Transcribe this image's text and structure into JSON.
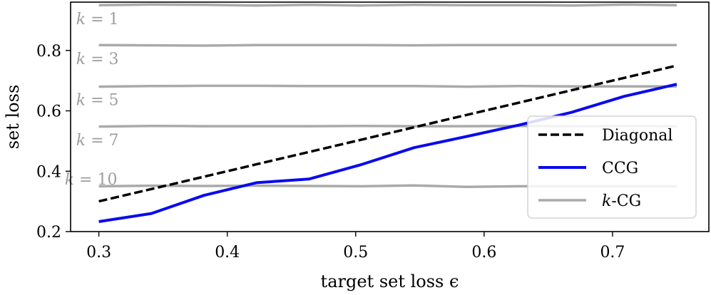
{
  "chart_data": {
    "type": "line",
    "title": "",
    "xlabel": "target set loss ϵ",
    "ylabel": "set loss",
    "xlim": [
      0.278,
      0.775
    ],
    "ylim": [
      0.2,
      0.96
    ],
    "xticks": [
      0.3,
      0.4,
      0.5,
      0.6,
      0.7
    ],
    "xtick_labels": [
      "0.3",
      "0.4",
      "0.5",
      "0.6",
      "0.7"
    ],
    "yticks": [
      0.2,
      0.4,
      0.6,
      0.8
    ],
    "ytick_labels": [
      "0.2",
      "0.4",
      "0.6",
      "0.8"
    ],
    "grid": false,
    "legend_position": "lower-right",
    "x": [
      0.3,
      0.3409,
      0.3818,
      0.4227,
      0.4636,
      0.5045,
      0.5455,
      0.5864,
      0.6273,
      0.6682,
      0.7091,
      0.75
    ],
    "series": [
      {
        "name": "Diagonal",
        "color": "#000000",
        "style": "dashed",
        "values": [
          0.3,
          0.3409,
          0.3818,
          0.4227,
          0.4636,
          0.5045,
          0.5455,
          0.5864,
          0.6273,
          0.6682,
          0.7091,
          0.75
        ]
      },
      {
        "name": "CCG",
        "color": "#0a0aef",
        "style": "solid",
        "values": [
          0.233,
          0.26,
          0.32,
          0.362,
          0.374,
          0.422,
          0.478,
          0.515,
          0.553,
          0.595,
          0.648,
          0.688
        ]
      },
      {
        "name": "k-CG",
        "color": "#aaaaaa",
        "style": "solid",
        "values": [
          0.95,
          0.952,
          0.951,
          0.949,
          0.951,
          0.949,
          0.951,
          0.95,
          0.95,
          0.949,
          0.952,
          0.95
        ]
      },
      {
        "name": "",
        "color": "#aaaaaa",
        "style": "solid",
        "values": [
          0.818,
          0.817,
          0.816,
          0.818,
          0.818,
          0.818,
          0.817,
          0.818,
          0.818,
          0.818,
          0.818,
          0.818
        ]
      },
      {
        "name": "",
        "color": "#aaaaaa",
        "style": "solid",
        "values": [
          0.68,
          0.682,
          0.683,
          0.683,
          0.682,
          0.682,
          0.682,
          0.68,
          0.682,
          0.681,
          0.681,
          0.681
        ]
      },
      {
        "name": "",
        "color": "#aaaaaa",
        "style": "solid",
        "values": [
          0.548,
          0.55,
          0.549,
          0.549,
          0.549,
          0.55,
          0.549,
          0.549,
          0.55,
          0.549,
          0.55,
          0.549
        ]
      },
      {
        "name": "",
        "color": "#aaaaaa",
        "style": "solid",
        "values": [
          0.35,
          0.352,
          0.351,
          0.352,
          0.351,
          0.35,
          0.353,
          0.348,
          0.35,
          0.35,
          0.35,
          0.35
        ]
      }
    ],
    "annotations": [
      {
        "text": "k = 1",
        "x": 0.3,
        "y": 0.906
      },
      {
        "text": "k = 3",
        "x": 0.3,
        "y": 0.774
      },
      {
        "text": "k = 5",
        "x": 0.3,
        "y": 0.638
      },
      {
        "text": "k = 7",
        "x": 0.3,
        "y": 0.505
      },
      {
        "text": "k = 10",
        "x": 0.295,
        "y": 0.375
      }
    ],
    "legend": [
      "Diagonal",
      "CCG",
      "k-CG"
    ]
  }
}
